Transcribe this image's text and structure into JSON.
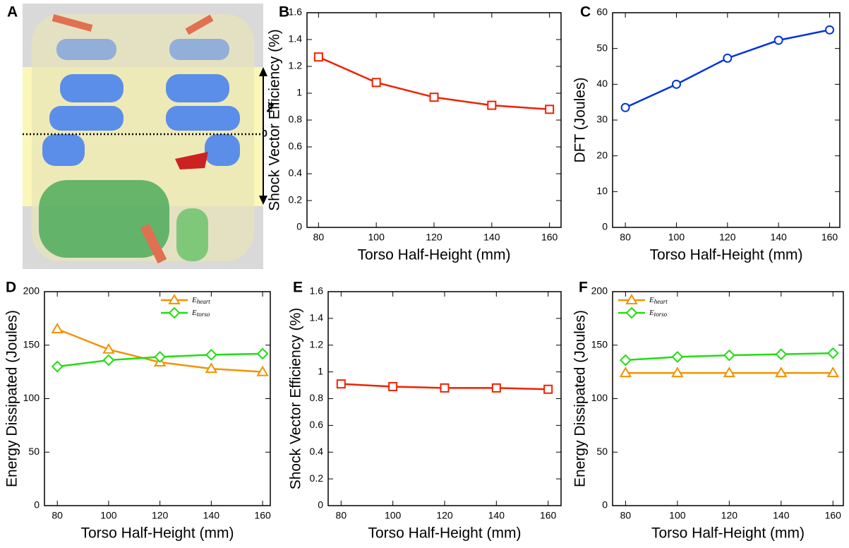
{
  "chart_data": [
    {
      "type": "image",
      "panel": "A",
      "annotations": [
        "z",
        "0"
      ]
    },
    {
      "type": "line",
      "panel": "B",
      "x": [
        80,
        100,
        120,
        140,
        160
      ],
      "xlim": [
        76,
        164
      ],
      "xticks": [
        80,
        100,
        120,
        140,
        160
      ],
      "ylim": [
        0,
        1.6
      ],
      "yticks": [
        0,
        0.2,
        0.4,
        0.6,
        0.8,
        1,
        1.2,
        1.4,
        1.6
      ],
      "xlabel": "Torso Half-Height (mm)",
      "ylabel": "Shock Vector Efficiency (%)",
      "series": [
        {
          "color": "#ee2200",
          "marker": "square",
          "values": [
            1.27,
            1.08,
            0.97,
            0.91,
            0.88
          ]
        }
      ]
    },
    {
      "type": "line",
      "panel": "C",
      "x": [
        80,
        100,
        120,
        140,
        160
      ],
      "xlim": [
        75,
        164
      ],
      "xticks": [
        80,
        100,
        120,
        140,
        160
      ],
      "ylim": [
        0,
        60
      ],
      "yticks": [
        0,
        10,
        20,
        30,
        40,
        50,
        60
      ],
      "xlabel": "Torso Half-Height (mm)",
      "ylabel": "DFT (Joules)",
      "series": [
        {
          "color": "#0033dd",
          "marker": "circle",
          "values": [
            33.5,
            40,
            47.3,
            52.3,
            55.2
          ]
        }
      ]
    },
    {
      "type": "line",
      "panel": "D",
      "x": [
        80,
        100,
        120,
        140,
        160
      ],
      "xlim": [
        75,
        163
      ],
      "xticks": [
        80,
        100,
        120,
        140,
        160
      ],
      "ylim": [
        0,
        200
      ],
      "yticks": [
        0,
        50,
        100,
        150,
        200
      ],
      "xlabel": "Torso Half-Height (mm)",
      "ylabel": "Energy Dissipated (Joules)",
      "legend": "upper right",
      "series": [
        {
          "name": "Eheart",
          "color": "#f39200",
          "marker": "triangle",
          "values": [
            165,
            146,
            134,
            128,
            125
          ]
        },
        {
          "name": "Etorso",
          "color": "#22dd11",
          "marker": "diamond",
          "values": [
            130,
            136,
            139,
            141,
            142
          ]
        }
      ]
    },
    {
      "type": "line",
      "panel": "E",
      "x": [
        80,
        100,
        120,
        140,
        160
      ],
      "xlim": [
        75,
        165
      ],
      "xticks": [
        80,
        100,
        120,
        140,
        160
      ],
      "ylim": [
        0,
        1.6
      ],
      "yticks": [
        0,
        0.2,
        0.4,
        0.6,
        0.8,
        1,
        1.2,
        1.4,
        1.6
      ],
      "xlabel": "Torso Half-Height (mm)",
      "ylabel": "Shock Vector Efficiency (%)",
      "series": [
        {
          "color": "#ee2200",
          "marker": "square",
          "values": [
            0.91,
            0.89,
            0.88,
            0.88,
            0.87
          ]
        }
      ]
    },
    {
      "type": "line",
      "panel": "F",
      "x": [
        80,
        100,
        120,
        140,
        160
      ],
      "xlim": [
        75,
        164
      ],
      "xticks": [
        80,
        100,
        120,
        140,
        160
      ],
      "ylim": [
        0,
        200
      ],
      "yticks": [
        0,
        50,
        100,
        150,
        200
      ],
      "xlabel": "Torso Half-Height (mm)",
      "ylabel": "Energy Dissipated (Joules)",
      "legend": "upper left",
      "series": [
        {
          "name": "Eheart",
          "color": "#f39200",
          "marker": "triangle",
          "values": [
            124,
            124,
            124,
            124,
            124
          ]
        },
        {
          "name": "Etorso",
          "color": "#22dd11",
          "marker": "diamond",
          "values": [
            136,
            139,
            140.5,
            141.5,
            142.5
          ]
        }
      ]
    }
  ]
}
